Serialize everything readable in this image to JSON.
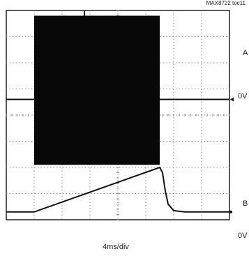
{
  "figure_id": "MAX8722 toc11",
  "chart_data": {
    "type": "line",
    "grid": true,
    "grid_divisions": {
      "x": 8,
      "y": 8
    },
    "x_scale": "4ms/div",
    "traces": [
      {
        "label": "A",
        "zero_marker": "0V",
        "waveform": "burst",
        "burst_start_div": 1.0,
        "burst_end_div": 5.5,
        "baseline_div": 3.4,
        "envelope_top_div": 0.2,
        "envelope_bottom_div": 5.9
      },
      {
        "label": "B",
        "zero_marker": "0V",
        "waveform": "ramp",
        "x_div": [
          0,
          1.0,
          5.5,
          5.6,
          5.7,
          5.8,
          6.0,
          6.4,
          8.0
        ],
        "y_div": [
          7.7,
          7.7,
          6.0,
          6.2,
          6.9,
          7.4,
          7.65,
          7.7,
          7.7
        ]
      }
    ]
  },
  "labels": {
    "timebase": "4ms/div",
    "trace_a": "A",
    "trace_a_zero": "0V",
    "trace_b": "B",
    "trace_b_zero": "0V"
  }
}
